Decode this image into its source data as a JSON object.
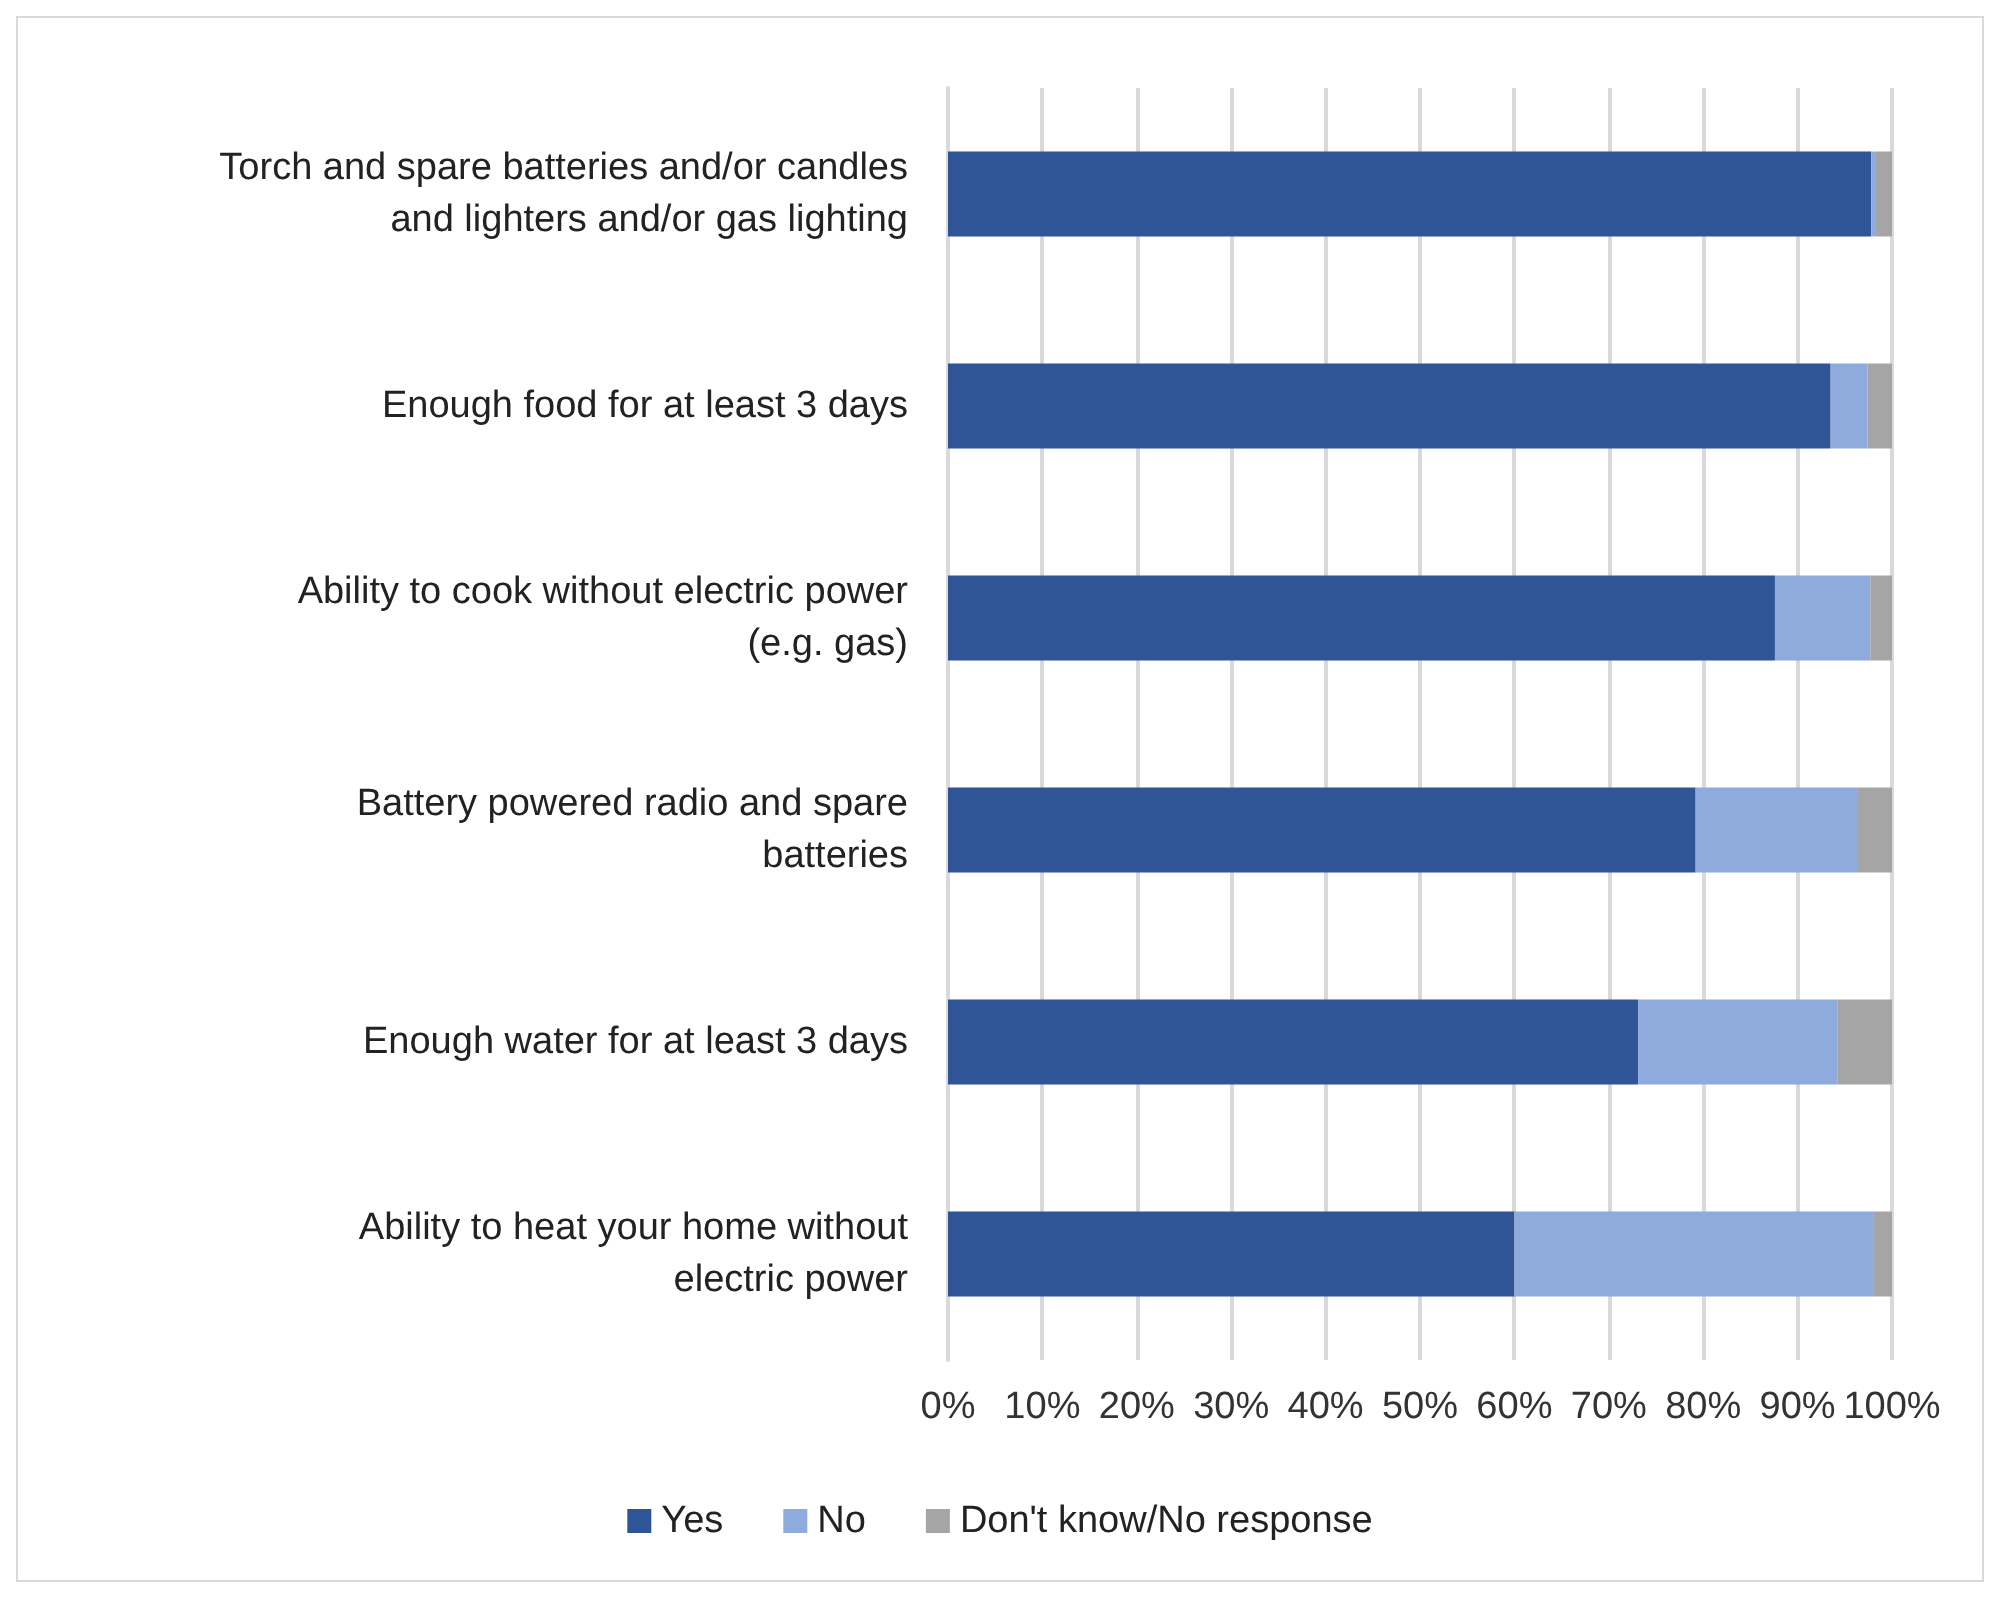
{
  "chart_data": {
    "type": "bar",
    "orientation": "horizontal",
    "stacked": true,
    "categories": [
      "Torch and spare batteries and/or candles and lighters and/or gas lighting",
      "Enough food for at least 3 days",
      "Ability to cook without electric power (e.g. gas)",
      "Battery powered radio and spare batteries",
      "Enough water for at least 3 days",
      "Ability to heat your home without electric power"
    ],
    "series": [
      {
        "name": "Yes",
        "color": "#2f5597",
        "values": [
          97.8,
          93.5,
          87.6,
          79.2,
          73.1,
          60.0
        ]
      },
      {
        "name": "No",
        "color": "#8faadc",
        "values": [
          0.5,
          3.9,
          10.1,
          17.1,
          21.1,
          38.0
        ]
      },
      {
        "name": "Don't know/No response",
        "color": "#a5a5a5",
        "values": [
          1.7,
          2.6,
          2.3,
          3.7,
          5.8,
          2.0
        ]
      }
    ],
    "xlim": [
      0,
      100
    ],
    "xticks": [
      {
        "value": 0,
        "label": "0%"
      },
      {
        "value": 10,
        "label": "10%"
      },
      {
        "value": 20,
        "label": "20%"
      },
      {
        "value": 30,
        "label": "30%"
      },
      {
        "value": 40,
        "label": "40%"
      },
      {
        "value": 50,
        "label": "50%"
      },
      {
        "value": 60,
        "label": "60%"
      },
      {
        "value": 70,
        "label": "70%"
      },
      {
        "value": 80,
        "label": "80%"
      },
      {
        "value": 90,
        "label": "90%"
      },
      {
        "value": 100,
        "label": "100%"
      }
    ],
    "grid": "x",
    "legend": "bottom"
  }
}
